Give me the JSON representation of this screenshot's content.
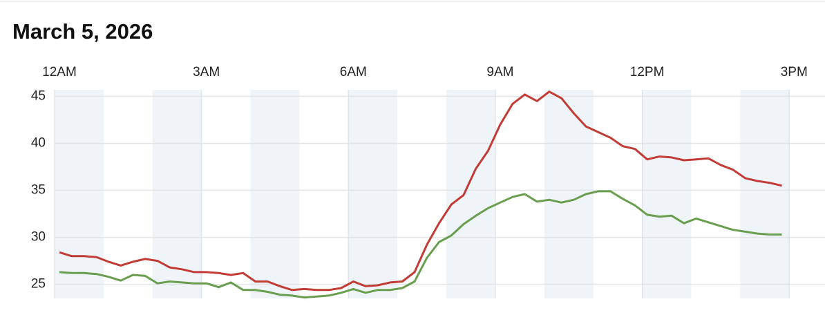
{
  "chart_data": {
    "type": "line",
    "title": "March 5, 2026",
    "x": [
      0.1,
      0.35,
      0.6,
      0.85,
      1.1,
      1.35,
      1.6,
      1.85,
      2.1,
      2.35,
      2.6,
      2.85,
      3.1,
      3.35,
      3.6,
      3.85,
      4.1,
      4.35,
      4.6,
      4.85,
      5.1,
      5.35,
      5.6,
      5.85,
      6.1,
      6.35,
      6.6,
      6.85,
      7.1,
      7.35,
      7.6,
      7.85,
      8.1,
      8.35,
      8.6,
      8.85,
      9.1,
      9.35,
      9.6,
      9.85,
      10.1,
      10.35,
      10.6,
      10.85,
      11.1,
      11.35,
      11.6,
      11.85,
      12.1,
      12.35,
      12.6,
      12.85,
      13.1,
      13.35,
      13.6,
      13.85,
      14.1,
      14.35,
      14.6,
      14.85
    ],
    "series": [
      {
        "color": "#c23b35",
        "values": [
          28.4,
          28.0,
          28.0,
          27.9,
          27.4,
          27.0,
          27.4,
          27.7,
          27.5,
          26.8,
          26.6,
          26.3,
          26.3,
          26.2,
          26.0,
          26.2,
          25.3,
          25.3,
          24.8,
          24.4,
          24.5,
          24.4,
          24.4,
          24.6,
          25.3,
          24.8,
          24.9,
          25.2,
          25.3,
          26.3,
          29.2,
          31.5,
          33.5,
          34.5,
          37.3,
          39.2,
          42.0,
          44.2,
          45.2,
          44.5,
          45.5,
          44.8,
          43.2,
          41.8,
          41.2,
          40.6,
          39.7,
          39.4,
          38.3,
          38.6,
          38.5,
          38.2,
          38.3,
          38.4,
          37.7,
          37.2,
          36.3,
          36.0,
          35.8,
          35.5
        ]
      },
      {
        "color": "#6a9e4f",
        "values": [
          26.3,
          26.2,
          26.2,
          26.1,
          25.8,
          25.4,
          26.0,
          25.9,
          25.1,
          25.3,
          25.2,
          25.1,
          25.1,
          24.7,
          25.2,
          24.4,
          24.4,
          24.2,
          23.9,
          23.8,
          23.6,
          23.7,
          23.8,
          24.1,
          24.5,
          24.1,
          24.4,
          24.4,
          24.6,
          25.3,
          27.8,
          29.5,
          30.2,
          31.4,
          32.3,
          33.1,
          33.7,
          34.3,
          34.6,
          33.8,
          34.0,
          33.7,
          34.0,
          34.6,
          34.9,
          34.9,
          34.1,
          33.4,
          32.4,
          32.2,
          32.3,
          31.5,
          32.0,
          31.6,
          31.2,
          30.8,
          30.6,
          30.4,
          30.3,
          30.3
        ]
      }
    ],
    "xlim": [
      0,
      15.73
    ],
    "xticks": [
      {
        "value": 0,
        "label": "12AM"
      },
      {
        "value": 3,
        "label": "3AM"
      },
      {
        "value": 6,
        "label": "6AM"
      },
      {
        "value": 9,
        "label": "9AM"
      },
      {
        "value": 12,
        "label": "12PM"
      },
      {
        "value": 15,
        "label": "3PM"
      }
    ],
    "ylim": [
      23.5,
      45.7
    ],
    "yticks": [
      25,
      30,
      35,
      40,
      45
    ],
    "grid": true
  }
}
